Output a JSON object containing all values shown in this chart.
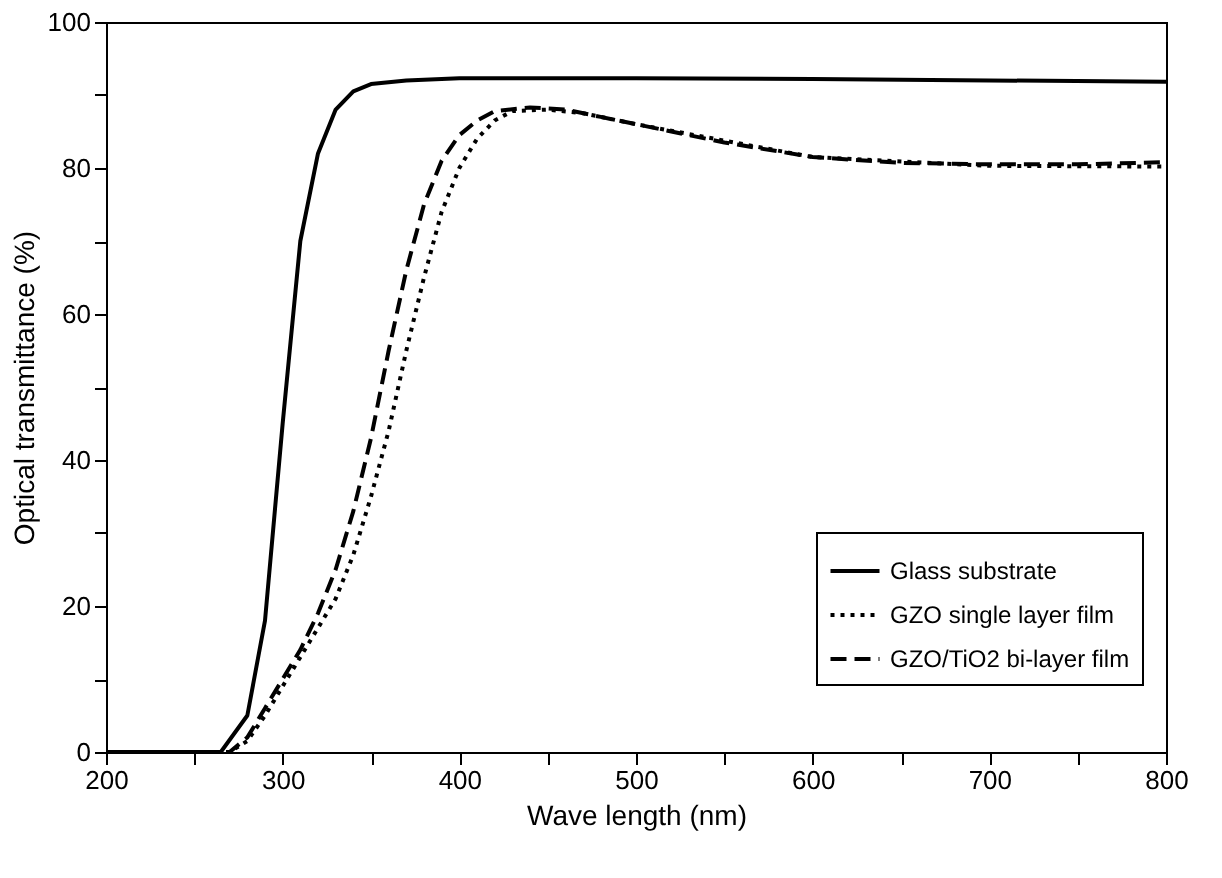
{
  "chart_data": {
    "type": "line",
    "xlabel": "Wave length (nm)",
    "ylabel": "Optical transmittance (%)",
    "xlim": [
      200,
      800
    ],
    "ylim": [
      0,
      100
    ],
    "xticks": [
      200,
      {
        "value": 250,
        "label": null
      },
      300,
      {
        "value": 350,
        "label": null
      },
      400,
      {
        "value": 450,
        "label": null
      },
      500,
      {
        "value": 550,
        "label": null
      },
      600,
      {
        "value": 650,
        "label": null
      },
      700,
      {
        "value": 750,
        "label": null
      },
      800
    ],
    "yticks": [
      0,
      {
        "value": 10,
        "label": null
      },
      20,
      {
        "value": 30,
        "label": null
      },
      40,
      {
        "value": 50,
        "label": null
      },
      60,
      {
        "value": 70,
        "label": null
      },
      80,
      {
        "value": 90,
        "label": null
      },
      100
    ],
    "grid": false,
    "legend": "bottom right",
    "marker": "none",
    "series": [
      {
        "name": "Glass substrate",
        "color": "#000000",
        "line_style": "solid",
        "x": [
          200,
          265,
          280,
          290,
          300,
          310,
          320,
          330,
          340,
          350,
          370,
          400,
          500,
          600,
          700,
          800
        ],
        "values": [
          0,
          0,
          5,
          18,
          45,
          70,
          82,
          88,
          90.5,
          91.5,
          92,
          92.3,
          92.3,
          92.2,
          92,
          91.8
        ]
      },
      {
        "name": "GZO single layer film",
        "color": "#000000",
        "line_style": "dotted",
        "x": [
          200,
          270,
          280,
          290,
          300,
          310,
          320,
          330,
          340,
          350,
          360,
          370,
          380,
          390,
          400,
          410,
          420,
          430,
          450,
          470,
          500,
          600,
          700,
          800
        ],
        "values": [
          0,
          0,
          1.5,
          5,
          9,
          13,
          17,
          21,
          27,
          35,
          44,
          55,
          65,
          74,
          80,
          84,
          86.5,
          87.8,
          88,
          87.5,
          86,
          81.5,
          80.3,
          80.2
        ]
      },
      {
        "name": "GZO/TiO2 bi-layer film",
        "color": "#000000",
        "line_style": "dashed",
        "x": [
          200,
          270,
          280,
          290,
          300,
          310,
          320,
          330,
          340,
          350,
          360,
          370,
          380,
          390,
          400,
          410,
          420,
          440,
          460,
          480,
          500,
          550,
          600,
          650,
          700,
          750,
          800
        ],
        "values": [
          0,
          0,
          2,
          6,
          10,
          14,
          19,
          25,
          33,
          43,
          55,
          66,
          75,
          81,
          84.5,
          86.5,
          87.8,
          88.3,
          88,
          87,
          86,
          83.5,
          81.5,
          80.7,
          80.5,
          80.5,
          80.8
        ]
      }
    ]
  }
}
